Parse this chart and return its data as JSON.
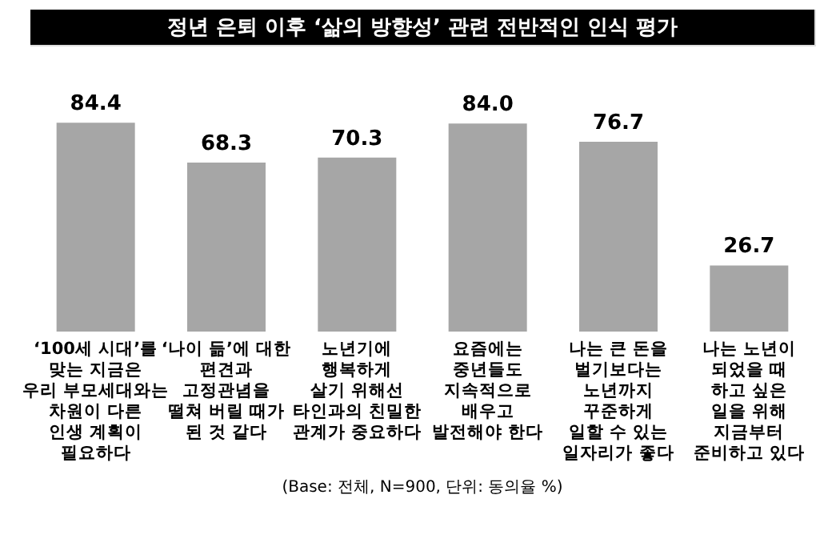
{
  "chart_data": {
    "type": "bar",
    "title": "정년 은퇴 이후 ‘삶의 방향성’ 관련 전반적인 인식 평가",
    "categories": [
      "‘100세 시대’를\n맞는 지금은\n우리 부모세대와는\n차원이 다른\n인생 계획이\n필요하다",
      "‘나이 듦’에 대한\n편견과\n고정관념을\n떨쳐 버릴 때가\n된 것 같다",
      "노년기에\n행복하게\n살기 위해선\n타인과의 친밀한\n관계가 중요하다",
      "요즘에는\n중년들도\n지속적으로\n배우고\n발전해야 한다",
      "나는 큰 돈을\n벌기보다는\n노년까지\n꾸준하게\n일할 수 있는\n일자리가 좋다",
      "나는 노년이\n되었을 때\n하고 싶은\n일을 위해\n지금부터\n준비하고 있다"
    ],
    "values": [
      84.4,
      68.3,
      70.3,
      84.0,
      76.7,
      26.7
    ],
    "color": "#a6a6a6",
    "value_labels": [
      "84.4",
      "68.3",
      "70.3",
      "84.0",
      "76.7",
      "26.7"
    ],
    "annotations": [
      "(Base: 전체, N=900, 단위: 동의율 %)"
    ]
  }
}
